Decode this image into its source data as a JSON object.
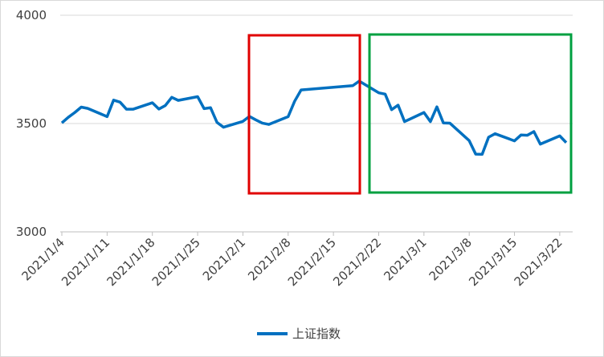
{
  "chart_data": {
    "type": "line",
    "x": [
      "2021/1/4",
      "2021/1/5",
      "2021/1/6",
      "2021/1/7",
      "2021/1/8",
      "2021/1/11",
      "2021/1/12",
      "2021/1/13",
      "2021/1/14",
      "2021/1/15",
      "2021/1/18",
      "2021/1/19",
      "2021/1/20",
      "2021/1/21",
      "2021/1/22",
      "2021/1/25",
      "2021/1/26",
      "2021/1/27",
      "2021/1/28",
      "2021/1/29",
      "2021/2/1",
      "2021/2/2",
      "2021/2/3",
      "2021/2/4",
      "2021/2/5",
      "2021/2/8",
      "2021/2/9",
      "2021/2/10",
      "2021/2/18",
      "2021/2/19",
      "2021/2/22",
      "2021/2/23",
      "2021/2/24",
      "2021/2/25",
      "2021/2/26",
      "2021/3/1",
      "2021/3/2",
      "2021/3/3",
      "2021/3/4",
      "2021/3/5",
      "2021/3/8",
      "2021/3/9",
      "2021/3/10",
      "2021/3/11",
      "2021/3/12",
      "2021/3/15",
      "2021/3/16",
      "2021/3/17",
      "2021/3/18",
      "2021/3/19",
      "2021/3/22",
      "2021/3/23"
    ],
    "series": [
      {
        "name": "上证指数",
        "color": "#0070c0",
        "values": [
          3503,
          3529,
          3551,
          3576,
          3570,
          3532,
          3608,
          3599,
          3566,
          3566,
          3596,
          3567,
          3583,
          3621,
          3607,
          3624,
          3569,
          3573,
          3505,
          3483,
          3510,
          3533,
          3517,
          3502,
          3496,
          3532,
          3603,
          3655,
          3675,
          3696,
          3642,
          3636,
          3564,
          3585,
          3509,
          3551,
          3509,
          3577,
          3503,
          3502,
          3421,
          3359,
          3358,
          3437,
          3453,
          3420,
          3447,
          3446,
          3463,
          3405,
          3443,
          3412
        ]
      }
    ],
    "xlim": [
      "2021/1/4",
      "2021/3/24"
    ],
    "xticks": [
      "2021/1/4",
      "2021/1/11",
      "2021/1/18",
      "2021/1/25",
      "2021/2/1",
      "2021/2/8",
      "2021/2/15",
      "2021/2/22",
      "2021/3/1",
      "2021/3/8",
      "2021/3/15",
      "2021/3/22"
    ],
    "ylim": [
      3000,
      4000
    ],
    "yticks": [
      3000,
      3500,
      4000
    ],
    "grid": true
  }
}
